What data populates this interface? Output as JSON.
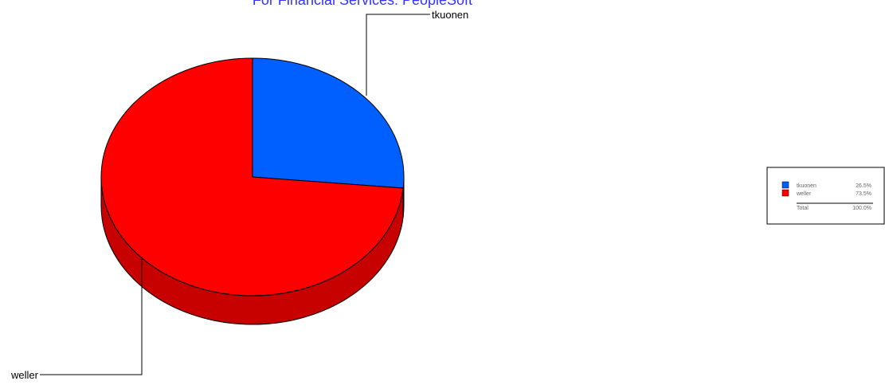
{
  "chart_data": {
    "type": "pie",
    "title": "For Financial Services: PeopleSoft",
    "categories": [
      "tkuonen",
      "weller"
    ],
    "values": [
      26.5,
      73.5
    ],
    "value_labels": [
      "26.5%",
      "73.5%"
    ],
    "colors": [
      "#0060ff",
      "#ff0000"
    ],
    "total_name": "Total",
    "total": 100.0,
    "total_label": "100.0%"
  }
}
